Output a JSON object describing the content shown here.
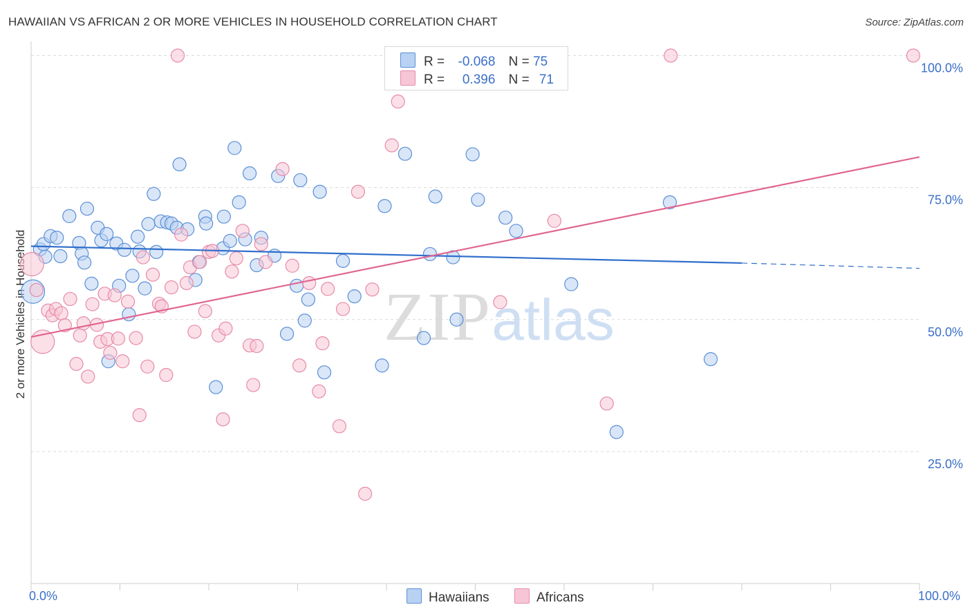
{
  "title": "HAWAIIAN VS AFRICAN 2 OR MORE VEHICLES IN HOUSEHOLD CORRELATION CHART",
  "source": "Source: ZipAtlas.com",
  "watermark": {
    "zip": "ZIP",
    "atlas": "atlas"
  },
  "legend_top": {
    "rows": [
      {
        "r_label": "R =",
        "r_value": "-0.068",
        "n_label": "N =",
        "n_value": "75"
      },
      {
        "r_label": "R =",
        "r_value": "0.396",
        "n_label": "N =",
        "n_value": "71"
      }
    ]
  },
  "legend_bottom": {
    "hawaiians": "Hawaiians",
    "africans": "Africans"
  },
  "colors": {
    "hawaiian_fill": "#b9d1f3",
    "hawaiian_stroke": "#5a8fd6",
    "hawaiian_line": "#2f6ecb",
    "african_fill": "#f7c6d6",
    "african_stroke": "#e68aa8",
    "african_line": "#e0658f",
    "axis_text": "#3a6fc8",
    "grid": "#d9d9d9"
  },
  "chart_data": {
    "type": "scatter",
    "title": "HAWAIIAN VS AFRICAN 2 OR MORE VEHICLES IN HOUSEHOLD CORRELATION CHART",
    "xlabel": "",
    "ylabel": "2 or more Vehicles in Household",
    "xlim": [
      0,
      100
    ],
    "ylim": [
      0,
      105
    ],
    "x_tick_labels": [
      "0.0%",
      "100.0%"
    ],
    "y_ticks": [
      25,
      50,
      75,
      100
    ],
    "y_tick_labels": [
      "25.0%",
      "50.0%",
      "75.0%",
      "100.0%"
    ],
    "grid": "horizontal dashed",
    "legend_position": "top-center",
    "series": [
      {
        "name": "Hawaiians",
        "R": -0.068,
        "N": 75,
        "trend": {
          "x0": 0,
          "y0": 63.9,
          "x1": 80,
          "y1": 60.7,
          "dashed_to_x": 100,
          "dashed_to_y": 59.7
        },
        "points": [
          [
            0.2,
            55.3
          ],
          [
            1.0,
            63.3
          ],
          [
            1.4,
            64.3
          ],
          [
            1.6,
            61.9
          ],
          [
            2.2,
            65.8
          ],
          [
            2.9,
            65.5
          ],
          [
            3.3,
            62.0
          ],
          [
            4.3,
            69.6
          ],
          [
            5.4,
            64.5
          ],
          [
            5.7,
            62.5
          ],
          [
            6.0,
            60.8
          ],
          [
            6.3,
            71.0
          ],
          [
            6.8,
            56.8
          ],
          [
            7.5,
            67.4
          ],
          [
            7.9,
            65.0
          ],
          [
            8.5,
            66.2
          ],
          [
            8.7,
            42.1
          ],
          [
            9.6,
            64.4
          ],
          [
            9.9,
            56.4
          ],
          [
            10.5,
            63.2
          ],
          [
            11.0,
            51.0
          ],
          [
            11.4,
            58.3
          ],
          [
            12.0,
            65.7
          ],
          [
            12.2,
            62.9
          ],
          [
            12.8,
            55.9
          ],
          [
            13.2,
            68.1
          ],
          [
            13.8,
            73.8
          ],
          [
            14.1,
            62.8
          ],
          [
            14.6,
            68.6
          ],
          [
            15.3,
            68.4
          ],
          [
            15.8,
            68.2
          ],
          [
            16.4,
            67.4
          ],
          [
            16.7,
            79.4
          ],
          [
            17.6,
            67.1
          ],
          [
            18.5,
            57.5
          ],
          [
            18.9,
            60.9
          ],
          [
            19.6,
            69.5
          ],
          [
            19.7,
            68.2
          ],
          [
            20.8,
            37.2
          ],
          [
            21.6,
            63.5
          ],
          [
            21.7,
            69.5
          ],
          [
            22.4,
            64.9
          ],
          [
            22.9,
            82.5
          ],
          [
            23.4,
            72.2
          ],
          [
            24.1,
            65.2
          ],
          [
            24.6,
            77.7
          ],
          [
            25.4,
            60.3
          ],
          [
            25.9,
            65.5
          ],
          [
            27.4,
            62.1
          ],
          [
            27.8,
            77.2
          ],
          [
            28.8,
            47.3
          ],
          [
            29.9,
            56.4
          ],
          [
            30.3,
            76.4
          ],
          [
            30.8,
            49.8
          ],
          [
            31.2,
            53.8
          ],
          [
            32.5,
            74.2
          ],
          [
            33.0,
            40.0
          ],
          [
            35.1,
            61.1
          ],
          [
            36.4,
            54.4
          ],
          [
            39.5,
            41.3
          ],
          [
            39.8,
            71.5
          ],
          [
            42.1,
            81.4
          ],
          [
            44.2,
            46.5
          ],
          [
            44.9,
            62.4
          ],
          [
            45.5,
            73.3
          ],
          [
            47.5,
            61.8
          ],
          [
            47.9,
            50.0
          ],
          [
            49.7,
            81.3
          ],
          [
            50.3,
            72.7
          ],
          [
            53.4,
            69.3
          ],
          [
            54.6,
            66.8
          ],
          [
            60.8,
            56.7
          ],
          [
            65.9,
            28.7
          ],
          [
            71.9,
            72.2
          ],
          [
            76.5,
            42.5
          ]
        ]
      },
      {
        "name": "Africans",
        "R": 0.396,
        "N": 71,
        "trend": {
          "x0": 0,
          "y0": 46.7,
          "x1": 100,
          "y1": 80.8
        },
        "points": [
          [
            0.1,
            60.5
          ],
          [
            0.6,
            55.6
          ],
          [
            1.3,
            45.8
          ],
          [
            1.9,
            51.7
          ],
          [
            2.4,
            50.8
          ],
          [
            2.8,
            52.0
          ],
          [
            3.4,
            51.2
          ],
          [
            3.8,
            48.9
          ],
          [
            4.4,
            53.9
          ],
          [
            5.1,
            41.6
          ],
          [
            5.5,
            47.0
          ],
          [
            5.9,
            49.3
          ],
          [
            6.4,
            39.2
          ],
          [
            6.9,
            52.9
          ],
          [
            7.4,
            49.0
          ],
          [
            7.8,
            45.8
          ],
          [
            8.3,
            54.9
          ],
          [
            8.6,
            46.3
          ],
          [
            8.9,
            43.7
          ],
          [
            9.4,
            54.6
          ],
          [
            9.8,
            46.4
          ],
          [
            10.3,
            42.1
          ],
          [
            10.9,
            53.4
          ],
          [
            11.8,
            46.5
          ],
          [
            12.2,
            31.9
          ],
          [
            12.6,
            61.8
          ],
          [
            13.1,
            41.1
          ],
          [
            13.7,
            58.5
          ],
          [
            14.4,
            53.0
          ],
          [
            14.7,
            52.5
          ],
          [
            15.2,
            39.5
          ],
          [
            15.8,
            56.1
          ],
          [
            16.5,
            100.0
          ],
          [
            16.9,
            66.1
          ],
          [
            17.5,
            56.9
          ],
          [
            17.9,
            59.9
          ],
          [
            18.4,
            47.7
          ],
          [
            19.0,
            60.9
          ],
          [
            19.6,
            51.6
          ],
          [
            20.0,
            62.8
          ],
          [
            20.4,
            63.0
          ],
          [
            21.1,
            47.0
          ],
          [
            21.6,
            31.1
          ],
          [
            21.9,
            48.3
          ],
          [
            22.6,
            59.1
          ],
          [
            23.1,
            61.6
          ],
          [
            23.8,
            66.8
          ],
          [
            24.6,
            45.1
          ],
          [
            25.0,
            37.6
          ],
          [
            25.4,
            45.0
          ],
          [
            25.9,
            64.3
          ],
          [
            26.4,
            60.9
          ],
          [
            28.3,
            78.5
          ],
          [
            29.4,
            60.2
          ],
          [
            30.2,
            41.3
          ],
          [
            31.3,
            56.9
          ],
          [
            32.4,
            36.4
          ],
          [
            32.8,
            45.5
          ],
          [
            33.4,
            55.8
          ],
          [
            34.7,
            29.8
          ],
          [
            35.1,
            52.0
          ],
          [
            36.8,
            74.2
          ],
          [
            37.6,
            17.0
          ],
          [
            38.4,
            55.7
          ],
          [
            40.6,
            83.0
          ],
          [
            41.3,
            91.3
          ],
          [
            52.8,
            53.3
          ],
          [
            58.9,
            68.7
          ],
          [
            64.8,
            34.1
          ],
          [
            72.0,
            100.0
          ],
          [
            99.3,
            100.0
          ]
        ]
      }
    ]
  }
}
